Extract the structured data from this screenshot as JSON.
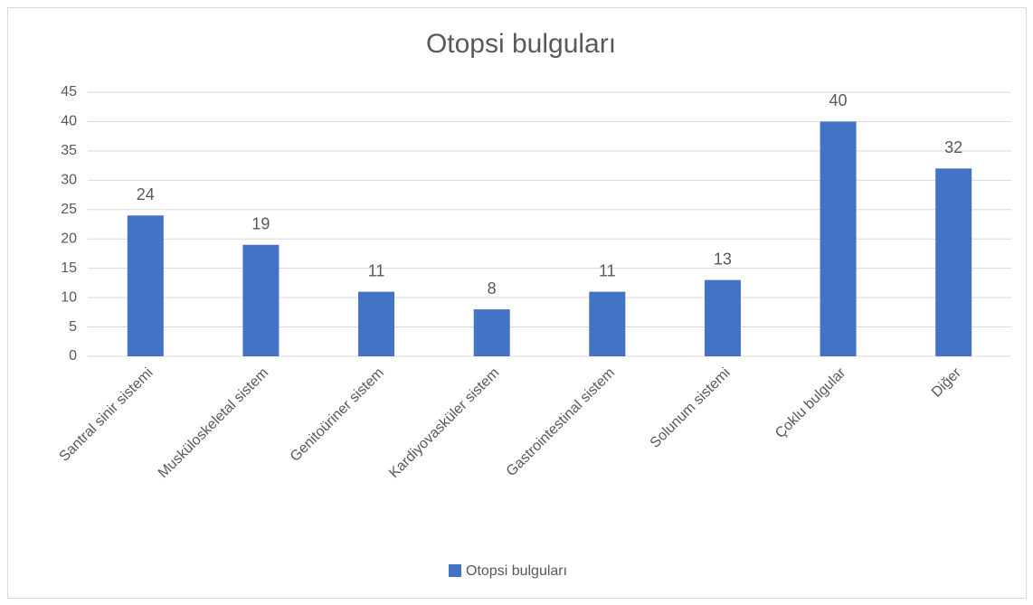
{
  "chart_data": {
    "type": "bar",
    "title": "Otopsi bulguları",
    "categories": [
      "Santral sinir sistemi",
      "Musküloskeletal sistem",
      "Genitoüriner sistem",
      "Kardiyovasküler sistem",
      "Gastrointestinal sistem",
      "Solunum sistemi",
      "Çoklu bulgular",
      "Diğer"
    ],
    "series": [
      {
        "name": "Otopsi bulguları",
        "color": "#4472c4",
        "values": [
          24,
          19,
          11,
          8,
          11,
          13,
          40,
          32
        ]
      }
    ],
    "ylim": [
      0,
      45
    ],
    "yticks": [
      0,
      5,
      10,
      15,
      20,
      25,
      30,
      35,
      40,
      45
    ],
    "grid": true,
    "legend": "bottom"
  }
}
